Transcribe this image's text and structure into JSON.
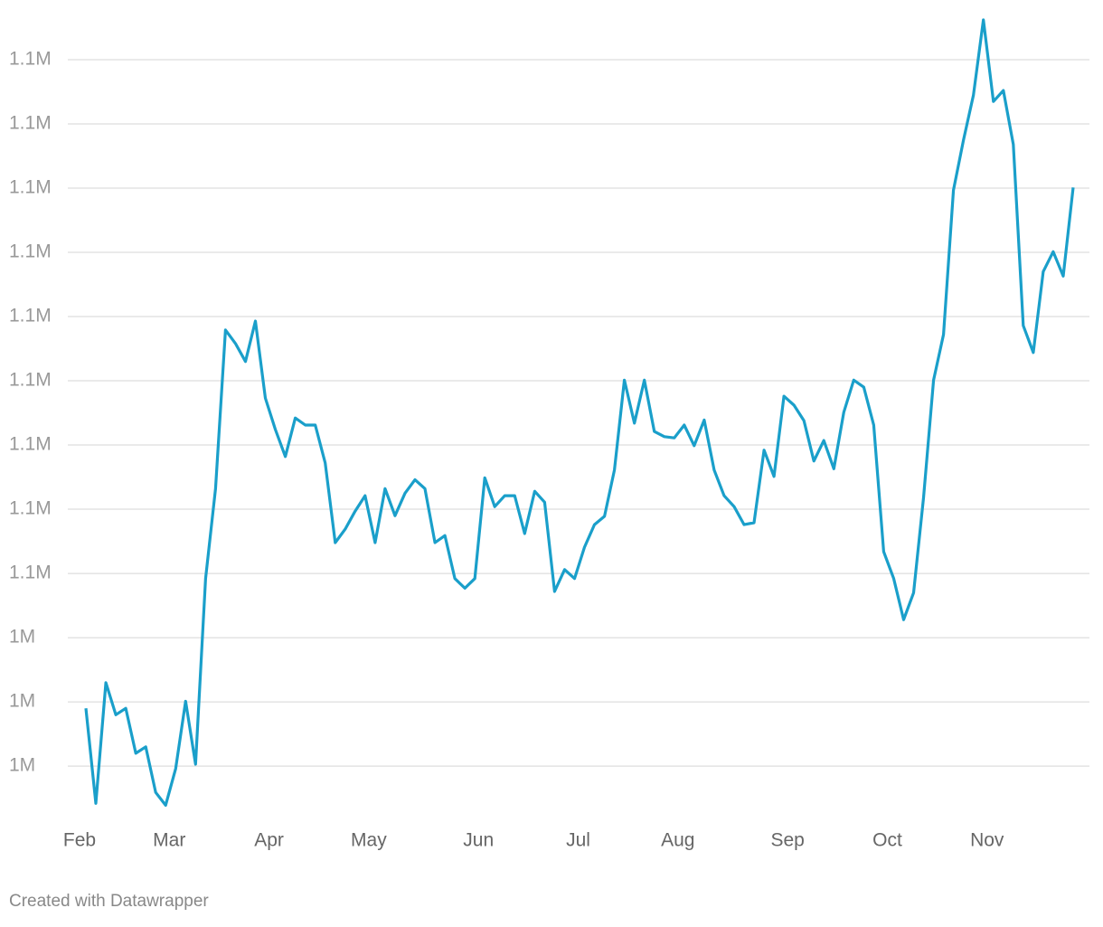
{
  "chart_data": {
    "type": "line",
    "categories": [
      "Feb",
      null,
      null,
      null,
      null,
      null,
      null,
      null,
      null,
      "Mar",
      null,
      null,
      null,
      null,
      null,
      null,
      null,
      null,
      null,
      "Apr",
      null,
      null,
      null,
      null,
      null,
      null,
      null,
      null,
      null,
      "May",
      null,
      null,
      null,
      null,
      null,
      null,
      null,
      null,
      null,
      null,
      "Jun",
      null,
      null,
      null,
      null,
      null,
      null,
      null,
      null,
      null,
      "Jul",
      null,
      null,
      null,
      null,
      null,
      null,
      null,
      null,
      null,
      "Aug",
      null,
      null,
      null,
      null,
      null,
      null,
      null,
      null,
      null,
      null,
      "Sep",
      null,
      null,
      null,
      null,
      null,
      null,
      null,
      null,
      null,
      "Oct",
      null,
      null,
      null,
      null,
      null,
      null,
      null,
      null,
      null,
      "Nov",
      null,
      null,
      null,
      null,
      null,
      null,
      null,
      null
    ],
    "series": [
      {
        "color": "#1a9fca",
        "values": [
          1029000,
          1014200,
          1033000,
          1028000,
          1029000,
          1022000,
          1023000,
          1015900,
          1013900,
          1019600,
          1030100,
          1020300,
          1049200,
          1063200,
          1087900,
          1085800,
          1083000,
          1089300,
          1077300,
          1072400,
          1068200,
          1074200,
          1073100,
          1073100,
          1067200,
          1054800,
          1056900,
          1059700,
          1062100,
          1054800,
          1063200,
          1059000,
          1062500,
          1064600,
          1063200,
          1054800,
          1055900,
          1049200,
          1047700,
          1049200,
          1064900,
          1060400,
          1062100,
          1062100,
          1056200,
          1062800,
          1061100,
          1047200,
          1050600,
          1049200,
          1054100,
          1057600,
          1058900,
          1066100,
          1080100,
          1073400,
          1080100,
          1072100,
          1071300,
          1071100,
          1073100,
          1069900,
          1073900,
          1066100,
          1062100,
          1060400,
          1057600,
          1057900,
          1069200,
          1065100,
          1077600,
          1076200,
          1073800,
          1067500,
          1070700,
          1066300,
          1075100,
          1080100,
          1079000,
          1073100,
          1053400,
          1049200,
          1042800,
          1047000,
          1061800,
          1080100,
          1087200,
          1109700,
          1117500,
          1124500,
          1136200,
          1123500,
          1125200,
          1116800,
          1088600,
          1084400,
          1097000,
          1100100,
          1096300,
          1110100
        ]
      }
    ],
    "ylim": [
      1011000,
      1137000
    ],
    "yticks": [
      {
        "value": 1020000,
        "label": "1M"
      },
      {
        "value": 1030000,
        "label": "1M"
      },
      {
        "value": 1040000,
        "label": "1M"
      },
      {
        "value": 1050000,
        "label": "1.1M"
      },
      {
        "value": 1060000,
        "label": "1.1M"
      },
      {
        "value": 1070000,
        "label": "1.1M"
      },
      {
        "value": 1080000,
        "label": "1.1M"
      },
      {
        "value": 1090000,
        "label": "1.1M"
      },
      {
        "value": 1100000,
        "label": "1.1M"
      },
      {
        "value": 1110000,
        "label": "1.1M"
      },
      {
        "value": 1120000,
        "label": "1.1M"
      },
      {
        "value": 1130000,
        "label": "1.1M"
      }
    ],
    "grid": true,
    "footer": "Created with Datawrapper"
  }
}
